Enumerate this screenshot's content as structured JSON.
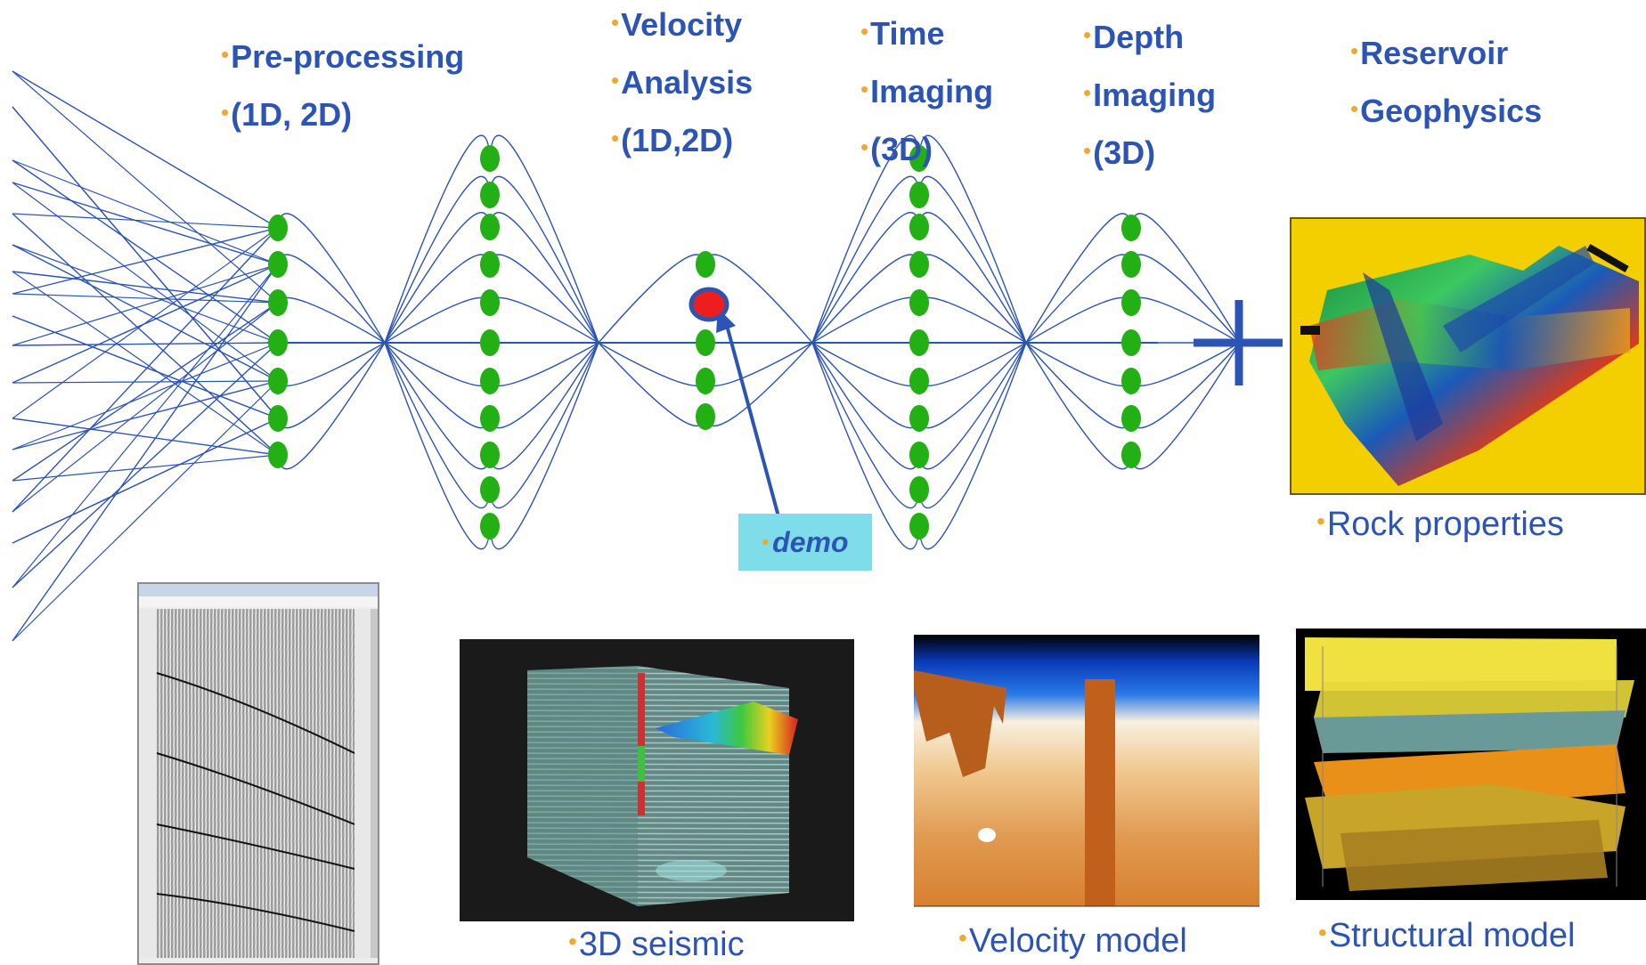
{
  "stages": [
    {
      "lines": [
        "Pre-processing",
        "(1D, 2D)"
      ]
    },
    {
      "lines": [
        "Velocity",
        "Analysis",
        "(1D,2D)"
      ]
    },
    {
      "lines": [
        "Time",
        "Imaging",
        "(3D)"
      ]
    },
    {
      "lines": [
        "Depth",
        "Imaging",
        "(3D)"
      ]
    },
    {
      "lines": [
        "Reservoir",
        "Geophysics"
      ]
    }
  ],
  "demo_label": "demo",
  "captions": {
    "rock": "Rock properties",
    "seismic3d": "3D seismic",
    "velocity": "Velocity model",
    "structural": "Structural model"
  },
  "colors": {
    "line": "#2c54b4",
    "node": "#22b014",
    "highlight": "#ee1e1e",
    "label": "#2c54b4",
    "bullet": "#f0a830",
    "demo_bg": "#7fdde9",
    "panel_yellow": "#f4cf00"
  }
}
